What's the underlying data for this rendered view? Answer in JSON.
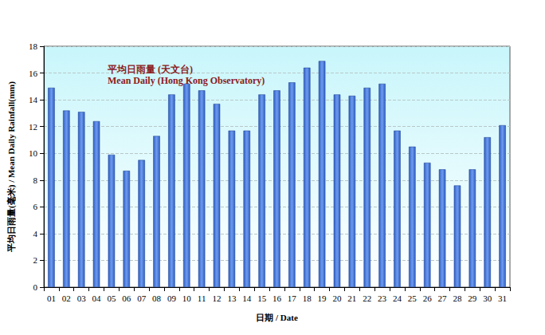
{
  "chart_data": {
    "type": "bar",
    "title": "平均日雨量 (天文台)",
    "subtitle": "Mean Daily (Hong Kong Observatory)",
    "xlabel": "日期 / Date",
    "ylabel": "平均日雨量(毫米) / Mean Daily Rainfall(mm)",
    "categories": [
      "01",
      "02",
      "03",
      "04",
      "05",
      "06",
      "07",
      "08",
      "09",
      "10",
      "11",
      "12",
      "13",
      "14",
      "15",
      "16",
      "17",
      "18",
      "19",
      "20",
      "21",
      "22",
      "23",
      "24",
      "25",
      "26",
      "27",
      "28",
      "29",
      "30",
      "31"
    ],
    "values": [
      14.9,
      13.2,
      13.1,
      12.4,
      9.9,
      8.7,
      9.5,
      11.3,
      14.4,
      15.2,
      14.7,
      13.7,
      11.7,
      11.7,
      14.4,
      14.7,
      15.3,
      16.4,
      16.9,
      14.4,
      14.3,
      14.9,
      15.2,
      11.7,
      10.5,
      9.3,
      8.8,
      7.6,
      8.8,
      11.2,
      12.1
    ],
    "color": "#2f5fc4",
    "ylim": [
      0,
      18
    ],
    "yticks": [
      0,
      2,
      4,
      6,
      8,
      10,
      12,
      14,
      16,
      18
    ],
    "grid": true
  }
}
